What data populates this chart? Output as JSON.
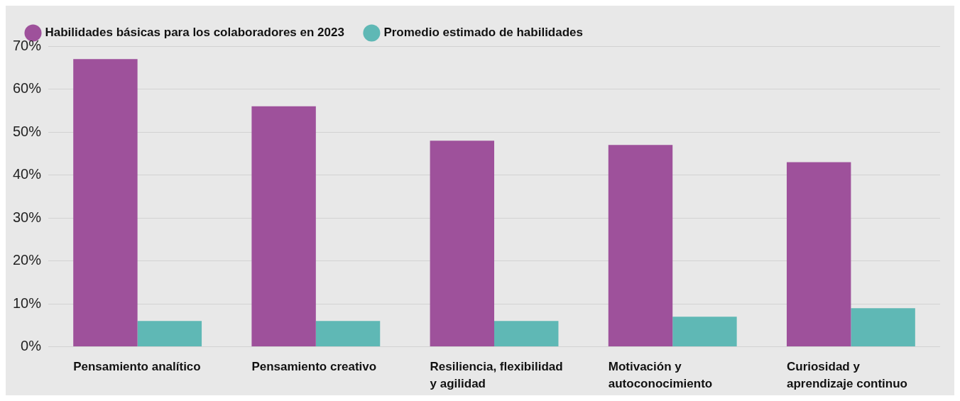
{
  "chart_data": {
    "type": "bar",
    "categories": [
      "Pensamiento analítico",
      "Pensamiento creativo",
      "Resiliencia, flexibilidad y agilidad",
      "Motivación y autoconocimiento",
      "Curiosidad y aprendizaje continuo"
    ],
    "series": [
      {
        "name": "Habilidades básicas para los colaboradores en 2023",
        "color": "#9e519b",
        "values": [
          67,
          56,
          48,
          47,
          43
        ]
      },
      {
        "name": "Promedio estimado de habilidades",
        "color": "#5fb8b5",
        "values": [
          6,
          6,
          6,
          7,
          9
        ]
      }
    ],
    "ylim": [
      0,
      70
    ],
    "yticks": [
      {
        "value": 0,
        "label": "0%"
      },
      {
        "value": 10,
        "label": "10%"
      },
      {
        "value": 20,
        "label": "20%"
      },
      {
        "value": 30,
        "label": "30%"
      },
      {
        "value": 40,
        "label": "40%"
      },
      {
        "value": 50,
        "label": "50%"
      },
      {
        "value": 60,
        "label": "60%"
      },
      {
        "value": 70,
        "label": "70%"
      }
    ],
    "grid": "y",
    "legend": "top left"
  }
}
